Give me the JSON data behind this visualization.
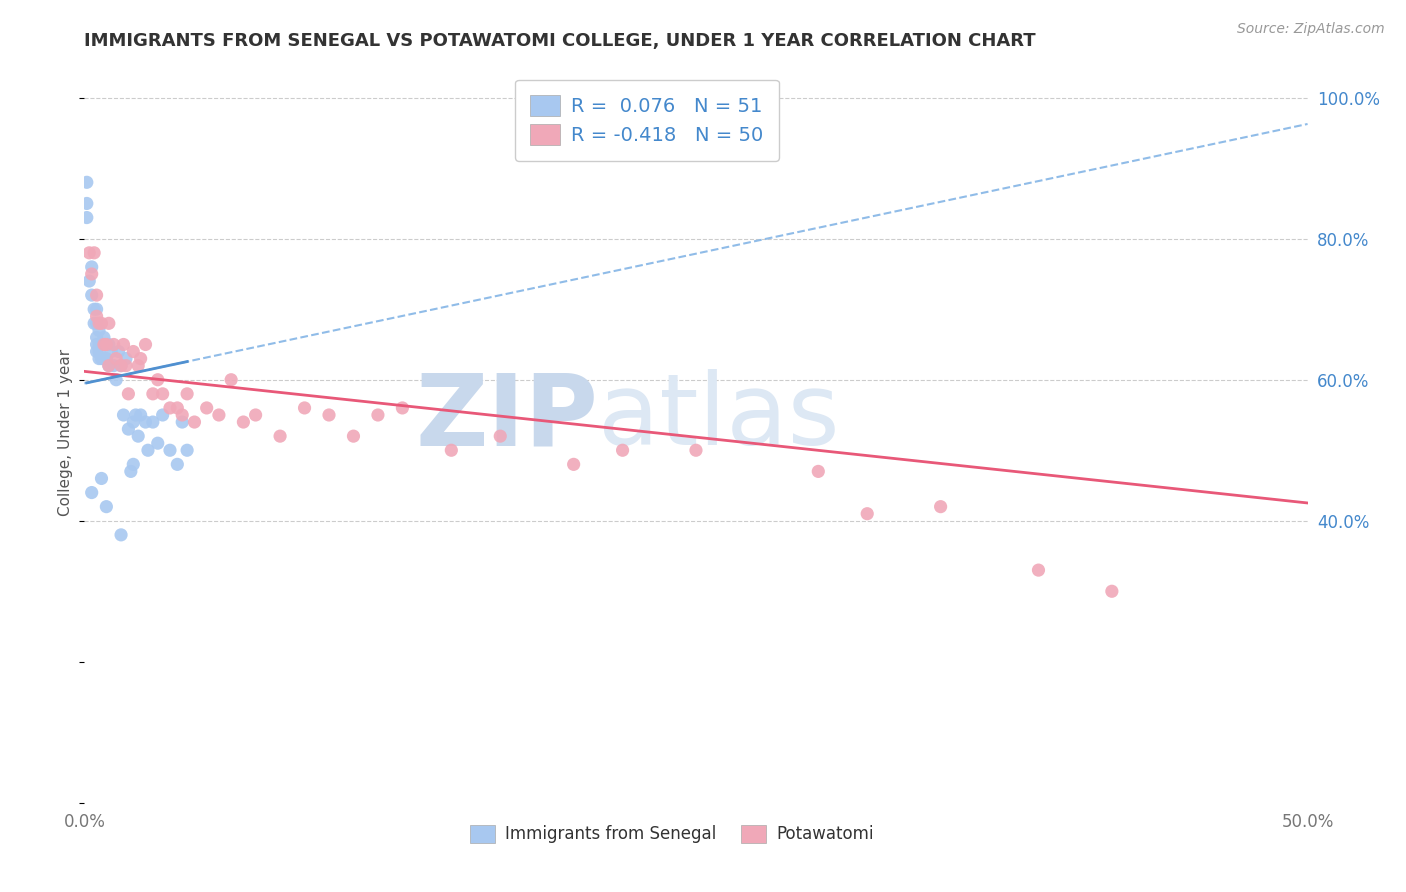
{
  "title": "IMMIGRANTS FROM SENEGAL VS POTAWATOMI COLLEGE, UNDER 1 YEAR CORRELATION CHART",
  "source": "Source: ZipAtlas.com",
  "ylabel_left": "College, Under 1 year",
  "x_min": 0.0,
  "x_max": 0.5,
  "y_min": 0.0,
  "y_max": 1.05,
  "x_ticks": [
    0.0,
    0.1,
    0.2,
    0.3,
    0.4,
    0.5
  ],
  "x_tick_labels": [
    "0.0%",
    "",
    "",
    "",
    "",
    "50.0%"
  ],
  "y_ticks_right": [
    0.4,
    0.6,
    0.8,
    1.0
  ],
  "y_tick_labels_right": [
    "40.0%",
    "60.0%",
    "80.0%",
    "100.0%"
  ],
  "r1": 0.076,
  "n1": 51,
  "r2": -0.418,
  "n2": 50,
  "color_blue": "#a8c8f0",
  "color_blue_line_solid": "#5090d0",
  "color_blue_line_dashed": "#90bce8",
  "color_pink": "#f0a8b8",
  "color_pink_line": "#e85878",
  "color_text_blue": "#4488cc",
  "color_text_dark": "#222222",
  "background_color": "#ffffff",
  "watermark_zip": "ZIP",
  "watermark_atlas": "atlas",
  "watermark_color": "#d0e4f4",
  "legend_label1": "Immigrants from Senegal",
  "legend_label2": "Potawatomi",
  "blue_points_x": [
    0.001,
    0.001,
    0.001,
    0.002,
    0.003,
    0.003,
    0.004,
    0.004,
    0.005,
    0.005,
    0.005,
    0.005,
    0.005,
    0.006,
    0.006,
    0.006,
    0.006,
    0.007,
    0.007,
    0.008,
    0.008,
    0.009,
    0.01,
    0.01,
    0.011,
    0.012,
    0.013,
    0.014,
    0.015,
    0.016,
    0.017,
    0.018,
    0.019,
    0.02,
    0.021,
    0.022,
    0.023,
    0.025,
    0.026,
    0.028,
    0.03,
    0.032,
    0.035,
    0.038,
    0.04,
    0.042,
    0.003,
    0.007,
    0.009,
    0.015,
    0.02
  ],
  "blue_points_y": [
    0.88,
    0.85,
    0.83,
    0.74,
    0.76,
    0.72,
    0.7,
    0.68,
    0.7,
    0.68,
    0.66,
    0.65,
    0.64,
    0.67,
    0.65,
    0.64,
    0.63,
    0.65,
    0.63,
    0.66,
    0.63,
    0.63,
    0.65,
    0.62,
    0.64,
    0.62,
    0.6,
    0.64,
    0.62,
    0.55,
    0.63,
    0.53,
    0.47,
    0.54,
    0.55,
    0.52,
    0.55,
    0.54,
    0.5,
    0.54,
    0.51,
    0.55,
    0.5,
    0.48,
    0.54,
    0.5,
    0.44,
    0.46,
    0.42,
    0.38,
    0.48
  ],
  "pink_points_x": [
    0.002,
    0.003,
    0.004,
    0.005,
    0.005,
    0.006,
    0.007,
    0.008,
    0.009,
    0.01,
    0.01,
    0.012,
    0.013,
    0.015,
    0.016,
    0.017,
    0.018,
    0.02,
    0.022,
    0.023,
    0.025,
    0.028,
    0.03,
    0.032,
    0.035,
    0.038,
    0.04,
    0.042,
    0.045,
    0.05,
    0.055,
    0.06,
    0.065,
    0.07,
    0.08,
    0.09,
    0.1,
    0.11,
    0.12,
    0.13,
    0.15,
    0.17,
    0.2,
    0.22,
    0.25,
    0.3,
    0.32,
    0.35,
    0.39,
    0.42
  ],
  "pink_points_y": [
    0.78,
    0.75,
    0.78,
    0.72,
    0.69,
    0.68,
    0.68,
    0.65,
    0.65,
    0.68,
    0.62,
    0.65,
    0.63,
    0.62,
    0.65,
    0.62,
    0.58,
    0.64,
    0.62,
    0.63,
    0.65,
    0.58,
    0.6,
    0.58,
    0.56,
    0.56,
    0.55,
    0.58,
    0.54,
    0.56,
    0.55,
    0.6,
    0.54,
    0.55,
    0.52,
    0.56,
    0.55,
    0.52,
    0.55,
    0.56,
    0.5,
    0.52,
    0.48,
    0.5,
    0.5,
    0.47,
    0.41,
    0.42,
    0.33,
    0.3
  ]
}
